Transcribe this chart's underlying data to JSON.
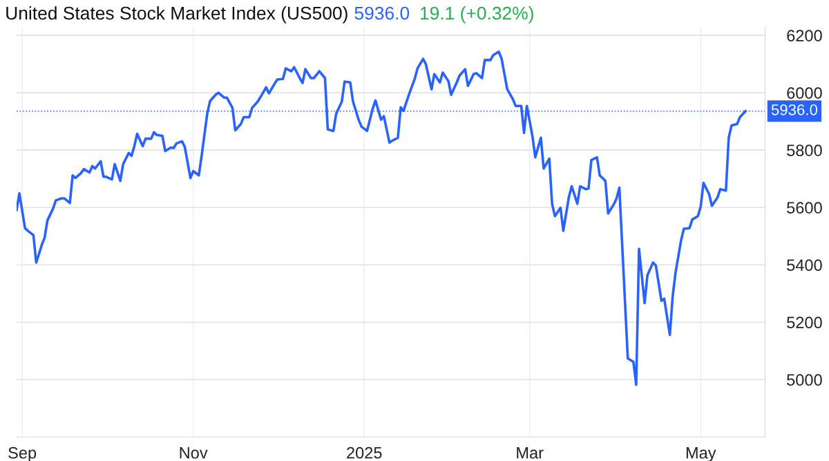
{
  "chart_data": {
    "type": "line",
    "title": "United States Stock Market Index (US500)",
    "annotations": [
      "5936.0",
      "19.1 (+0.32%)"
    ],
    "x": [
      "2024-08-30",
      "2024-08-31",
      "2024-09-02",
      "2024-09-03",
      "2024-09-05",
      "2024-09-06",
      "2024-09-08",
      "2024-09-09",
      "2024-09-10",
      "2024-09-12",
      "2024-09-13",
      "2024-09-15",
      "2024-09-16",
      "2024-09-18",
      "2024-09-19",
      "2024-09-20",
      "2024-09-22",
      "2024-09-23",
      "2024-09-25",
      "2024-09-26",
      "2024-09-27",
      "2024-09-29",
      "2024-09-30",
      "2024-10-01",
      "2024-10-03",
      "2024-10-04",
      "2024-10-06",
      "2024-10-07",
      "2024-10-09",
      "2024-10-10",
      "2024-10-11",
      "2024-10-12",
      "2024-10-14",
      "2024-10-15",
      "2024-10-17",
      "2024-10-18",
      "2024-10-19",
      "2024-10-21",
      "2024-10-22",
      "2024-10-24",
      "2024-10-25",
      "2024-10-26",
      "2024-10-28",
      "2024-10-29",
      "2024-10-31",
      "2024-11-01",
      "2024-11-03",
      "2024-11-04",
      "2024-11-06",
      "2024-11-07",
      "2024-11-09",
      "2024-11-10",
      "2024-11-12",
      "2024-11-13",
      "2024-11-15",
      "2024-11-16",
      "2024-11-18",
      "2024-11-19",
      "2024-11-21",
      "2024-11-22",
      "2024-11-24",
      "2024-11-25",
      "2024-11-27",
      "2024-11-28",
      "2024-11-30",
      "2024-12-01",
      "2024-12-03",
      "2024-12-04",
      "2024-12-06",
      "2024-12-07",
      "2024-12-09",
      "2024-12-10",
      "2024-12-11",
      "2024-12-13",
      "2024-12-14",
      "2024-12-16",
      "2024-12-18",
      "2024-12-19",
      "2024-12-21",
      "2024-12-22",
      "2024-12-24",
      "2024-12-25",
      "2024-12-27",
      "2024-12-28",
      "2024-12-30",
      "2024-12-31",
      "2025-01-02",
      "2025-01-04",
      "2025-01-05",
      "2025-01-07",
      "2025-01-08",
      "2025-01-10",
      "2025-01-11",
      "2025-01-13",
      "2025-01-14",
      "2025-01-15",
      "2025-01-17",
      "2025-01-19",
      "2025-01-20",
      "2025-01-22",
      "2025-01-23",
      "2025-01-25",
      "2025-01-26",
      "2025-01-28",
      "2025-01-29",
      "2025-01-31",
      "2025-02-01",
      "2025-02-03",
      "2025-02-04",
      "2025-02-06",
      "2025-02-07",
      "2025-02-09",
      "2025-02-10",
      "2025-02-12",
      "2025-02-13",
      "2025-02-15",
      "2025-02-16",
      "2025-02-18",
      "2025-02-19",
      "2025-02-21",
      "2025-02-23",
      "2025-02-24",
      "2025-02-26",
      "2025-02-27",
      "2025-02-28",
      "2025-03-02",
      "2025-03-03",
      "2025-03-05",
      "2025-03-06",
      "2025-03-08",
      "2025-03-09",
      "2025-03-10",
      "2025-03-12",
      "2025-03-13",
      "2025-03-15",
      "2025-03-16",
      "2025-03-18",
      "2025-03-19",
      "2025-03-21",
      "2025-03-22",
      "2025-03-23",
      "2025-03-25",
      "2025-03-26",
      "2025-03-28",
      "2025-03-29",
      "2025-03-31",
      "2025-04-01",
      "2025-04-02",
      "2025-04-05",
      "2025-04-07",
      "2025-04-08",
      "2025-04-09",
      "2025-04-11",
      "2025-04-12",
      "2025-04-14",
      "2025-04-15",
      "2025-04-17",
      "2025-04-18",
      "2025-04-20",
      "2025-04-21",
      "2025-04-22",
      "2025-04-24",
      "2025-04-25",
      "2025-04-27",
      "2025-04-28",
      "2025-04-30",
      "2025-05-01",
      "2025-05-02",
      "2025-05-04",
      "2025-05-05",
      "2025-05-07",
      "2025-05-08",
      "2025-05-10",
      "2025-05-11",
      "2025-05-12",
      "2025-05-14",
      "2025-05-15",
      "2025-05-17"
    ],
    "series": [
      {
        "color": "#2962ff",
        "values": [
          5591,
          5649,
          5528,
          5519,
          5504,
          5408,
          5470,
          5495,
          5555,
          5596,
          5625,
          5632,
          5632,
          5616,
          5712,
          5703,
          5720,
          5734,
          5722,
          5744,
          5736,
          5761,
          5707,
          5707,
          5698,
          5751,
          5693,
          5751,
          5790,
          5780,
          5814,
          5857,
          5814,
          5840,
          5840,
          5862,
          5853,
          5850,
          5797,
          5809,
          5807,
          5823,
          5831,
          5811,
          5703,
          5727,
          5712,
          5780,
          5927,
          5971,
          5993,
          6000,
          5983,
          5983,
          5947,
          5869,
          5891,
          5915,
          5915,
          5947,
          5969,
          5985,
          6019,
          5998,
          6031,
          6046,
          6048,
          6085,
          6075,
          6089,
          6051,
          6034,
          6082,
          6051,
          6051,
          6075,
          6051,
          5872,
          5867,
          5927,
          5969,
          6039,
          6036,
          5969,
          5906,
          5882,
          5867,
          5944,
          5973,
          5906,
          5918,
          5826,
          5833,
          5843,
          5949,
          5937,
          5995,
          6048,
          6085,
          6118,
          6099,
          6012,
          6065,
          6036,
          6070,
          6041,
          5993,
          6036,
          6060,
          6082,
          6024,
          6065,
          6068,
          6051,
          6114,
          6114,
          6131,
          6143,
          6118,
          6012,
          5978,
          5954,
          5954,
          5860,
          5954,
          5848,
          5775,
          5843,
          5736,
          5770,
          5613,
          5570,
          5599,
          5519,
          5637,
          5674,
          5613,
          5674,
          5664,
          5666,
          5765,
          5775,
          5712,
          5693,
          5579,
          5611,
          5632,
          5669,
          5074,
          5062,
          4982,
          5456,
          5267,
          5364,
          5408,
          5398,
          5275,
          5282,
          5156,
          5289,
          5371,
          5485,
          5526,
          5528,
          5558,
          5570,
          5603,
          5686,
          5647,
          5606,
          5635,
          5664,
          5659,
          5843,
          5886,
          5891,
          5915,
          5936
        ]
      }
    ],
    "xlim": [
      "2024-08-30",
      "2025-05-24"
    ],
    "xticks": [
      {
        "value": "2024-09-01",
        "label": "Sep"
      },
      {
        "value": "2024-11-01",
        "label": "Nov"
      },
      {
        "value": "2025-01-01",
        "label": "2025"
      },
      {
        "value": "2025-03-01",
        "label": "Mar"
      },
      {
        "value": "2025-05-01",
        "label": "May"
      }
    ],
    "ylim": [
      4800,
      6230
    ],
    "yticks": [
      5000,
      5200,
      5400,
      5600,
      5800,
      6000,
      6200
    ],
    "ref_lines": [
      {
        "axis": "y",
        "value": 5936,
        "label": "5936.0",
        "color": "#2962ff",
        "line_style": "dotted"
      }
    ],
    "grid": true,
    "line_style": "solid",
    "marker": "none"
  }
}
